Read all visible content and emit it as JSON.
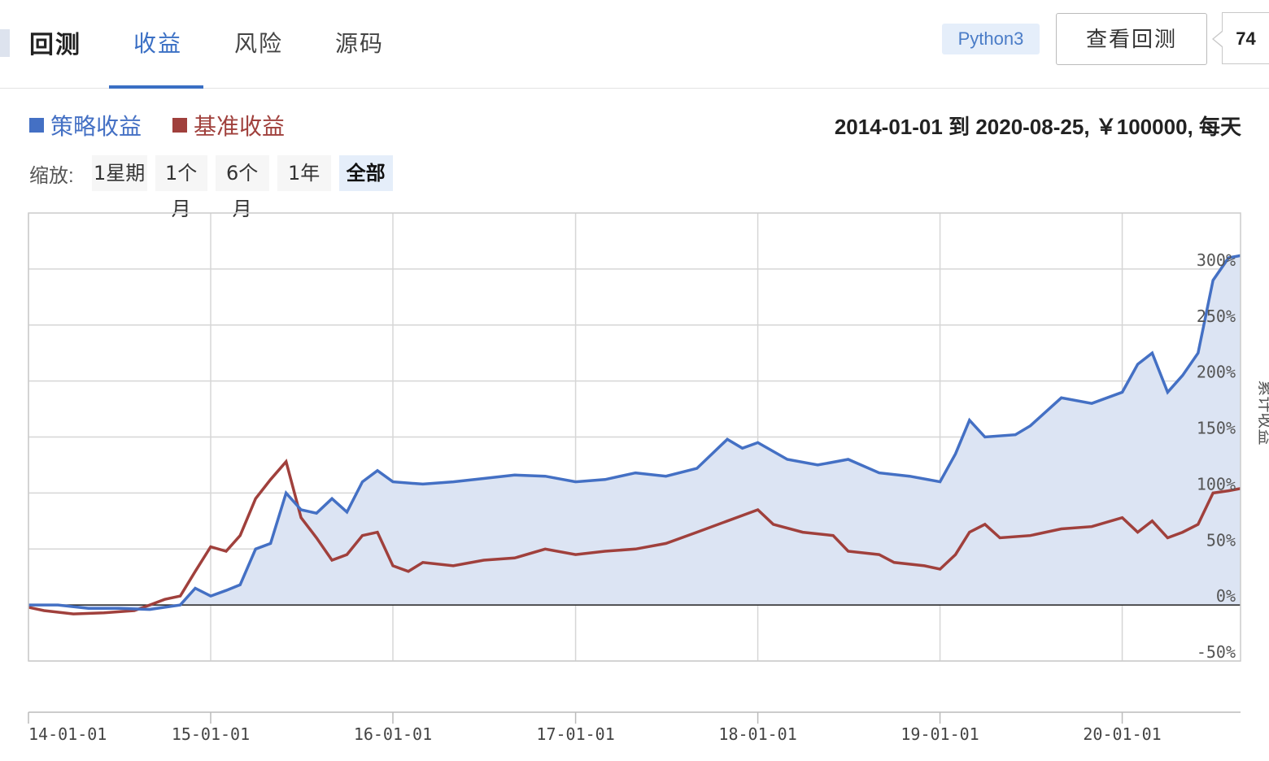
{
  "header": {
    "title": "回测",
    "tabs": [
      {
        "label": "收益",
        "active": true
      },
      {
        "label": "风险",
        "active": false
      },
      {
        "label": "源码",
        "active": false
      }
    ],
    "language_badge": "Python3",
    "view_backtest_label": "查看回测",
    "count": "74"
  },
  "legend": [
    {
      "label": "策略收益",
      "color": "#4470c4"
    },
    {
      "label": "基准收益",
      "color": "#a0403c"
    }
  ],
  "info": {
    "start": "2014-01-01",
    "to": "到",
    "end": "2020-08-25",
    "capital": "￥100000",
    "freq": "每天"
  },
  "zoom": {
    "label": "缩放:",
    "buttons": [
      "1星期",
      "1个月",
      "6个月",
      "1年",
      "全部"
    ],
    "active": "全部"
  },
  "chart_data": {
    "type": "line",
    "ylabel": "累计收益",
    "ylim": [
      -50,
      350
    ],
    "yticks": [
      "300%",
      "250%",
      "200%",
      "150%",
      "100%",
      "50%",
      "0%",
      "-50%"
    ],
    "ytick_values": [
      300,
      250,
      200,
      150,
      100,
      50,
      0,
      -50
    ],
    "xticks": [
      "14-01-01",
      "15-01-01",
      "16-01-01",
      "17-01-01",
      "18-01-01",
      "19-01-01",
      "20-01-01"
    ],
    "xtick_dates": [
      "2014-01-01",
      "2015-01-01",
      "2016-01-01",
      "2017-01-01",
      "2018-01-01",
      "2019-01-01",
      "2020-01-01"
    ],
    "xrange": [
      "2014-01-01",
      "2020-08-25"
    ],
    "grid": true,
    "area_fill": "#dce4f3",
    "series": [
      {
        "name": "策略收益",
        "color": "#4470c4",
        "points": [
          [
            "2014-01-01",
            0
          ],
          [
            "2014-03-01",
            0
          ],
          [
            "2014-05-01",
            -3
          ],
          [
            "2014-07-01",
            -3
          ],
          [
            "2014-09-01",
            -4
          ],
          [
            "2014-11-01",
            0
          ],
          [
            "2014-12-01",
            15
          ],
          [
            "2015-01-01",
            8
          ],
          [
            "2015-02-01",
            13
          ],
          [
            "2015-03-01",
            18
          ],
          [
            "2015-04-01",
            50
          ],
          [
            "2015-05-01",
            55
          ],
          [
            "2015-06-01",
            100
          ],
          [
            "2015-07-01",
            85
          ],
          [
            "2015-08-01",
            82
          ],
          [
            "2015-09-01",
            95
          ],
          [
            "2015-10-01",
            83
          ],
          [
            "2015-11-01",
            110
          ],
          [
            "2015-12-01",
            120
          ],
          [
            "2016-01-01",
            110
          ],
          [
            "2016-03-01",
            108
          ],
          [
            "2016-05-01",
            110
          ],
          [
            "2016-07-01",
            113
          ],
          [
            "2016-09-01",
            116
          ],
          [
            "2016-11-01",
            115
          ],
          [
            "2017-01-01",
            110
          ],
          [
            "2017-03-01",
            112
          ],
          [
            "2017-05-01",
            118
          ],
          [
            "2017-07-01",
            115
          ],
          [
            "2017-09-01",
            122
          ],
          [
            "2017-11-01",
            148
          ],
          [
            "2017-12-01",
            140
          ],
          [
            "2018-01-01",
            145
          ],
          [
            "2018-03-01",
            130
          ],
          [
            "2018-05-01",
            125
          ],
          [
            "2018-07-01",
            130
          ],
          [
            "2018-09-01",
            118
          ],
          [
            "2018-11-01",
            115
          ],
          [
            "2019-01-01",
            110
          ],
          [
            "2019-02-01",
            135
          ],
          [
            "2019-03-01",
            165
          ],
          [
            "2019-04-01",
            150
          ],
          [
            "2019-06-01",
            152
          ],
          [
            "2019-07-01",
            160
          ],
          [
            "2019-09-01",
            185
          ],
          [
            "2019-11-01",
            180
          ],
          [
            "2020-01-01",
            190
          ],
          [
            "2020-02-01",
            215
          ],
          [
            "2020-03-01",
            225
          ],
          [
            "2020-04-01",
            190
          ],
          [
            "2020-05-01",
            205
          ],
          [
            "2020-06-01",
            225
          ],
          [
            "2020-07-01",
            290
          ],
          [
            "2020-08-01",
            310
          ],
          [
            "2020-08-25",
            312
          ]
        ]
      },
      {
        "name": "基准收益",
        "color": "#a0403c",
        "points": [
          [
            "2014-01-01",
            -2
          ],
          [
            "2014-02-01",
            -5
          ],
          [
            "2014-04-01",
            -8
          ],
          [
            "2014-06-01",
            -7
          ],
          [
            "2014-08-01",
            -5
          ],
          [
            "2014-09-01",
            0
          ],
          [
            "2014-10-01",
            5
          ],
          [
            "2014-11-01",
            8
          ],
          [
            "2014-12-01",
            30
          ],
          [
            "2015-01-01",
            52
          ],
          [
            "2015-02-01",
            48
          ],
          [
            "2015-03-01",
            62
          ],
          [
            "2015-04-01",
            95
          ],
          [
            "2015-05-01",
            112
          ],
          [
            "2015-06-01",
            128
          ],
          [
            "2015-07-01",
            78
          ],
          [
            "2015-08-01",
            60
          ],
          [
            "2015-09-01",
            40
          ],
          [
            "2015-10-01",
            45
          ],
          [
            "2015-11-01",
            62
          ],
          [
            "2015-12-01",
            65
          ],
          [
            "2016-01-01",
            35
          ],
          [
            "2016-02-01",
            30
          ],
          [
            "2016-03-01",
            38
          ],
          [
            "2016-05-01",
            35
          ],
          [
            "2016-07-01",
            40
          ],
          [
            "2016-09-01",
            42
          ],
          [
            "2016-11-01",
            50
          ],
          [
            "2017-01-01",
            45
          ],
          [
            "2017-03-01",
            48
          ],
          [
            "2017-05-01",
            50
          ],
          [
            "2017-07-01",
            55
          ],
          [
            "2017-09-01",
            65
          ],
          [
            "2017-11-01",
            75
          ],
          [
            "2018-01-01",
            85
          ],
          [
            "2018-02-01",
            72
          ],
          [
            "2018-04-01",
            65
          ],
          [
            "2018-06-01",
            62
          ],
          [
            "2018-07-01",
            48
          ],
          [
            "2018-09-01",
            45
          ],
          [
            "2018-10-01",
            38
          ],
          [
            "2018-12-01",
            35
          ],
          [
            "2019-01-01",
            32
          ],
          [
            "2019-02-01",
            45
          ],
          [
            "2019-03-01",
            65
          ],
          [
            "2019-04-01",
            72
          ],
          [
            "2019-05-01",
            60
          ],
          [
            "2019-07-01",
            62
          ],
          [
            "2019-09-01",
            68
          ],
          [
            "2019-11-01",
            70
          ],
          [
            "2020-01-01",
            78
          ],
          [
            "2020-02-01",
            65
          ],
          [
            "2020-03-01",
            75
          ],
          [
            "2020-04-01",
            60
          ],
          [
            "2020-05-01",
            65
          ],
          [
            "2020-06-01",
            72
          ],
          [
            "2020-07-01",
            100
          ],
          [
            "2020-08-01",
            102
          ],
          [
            "2020-08-25",
            104
          ]
        ]
      }
    ]
  }
}
